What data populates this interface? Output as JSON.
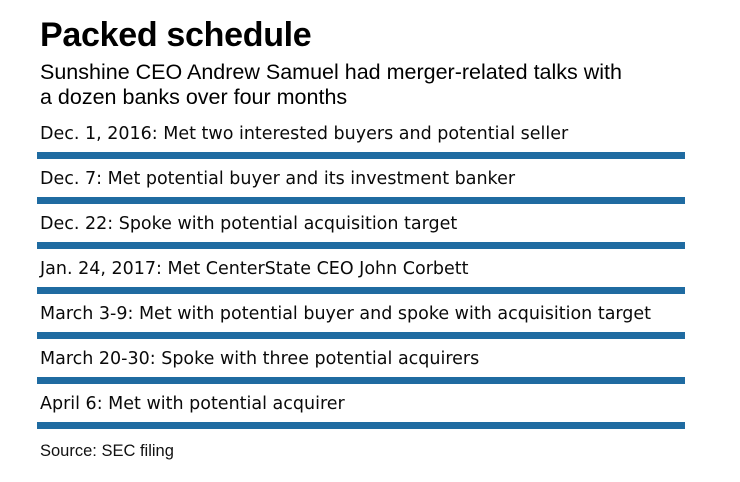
{
  "header": {
    "title": "Packed schedule",
    "subtitle": "Sunshine CEO Andrew Samuel had merger-related talks with a dozen banks over four months",
    "subtitle_lines": [
      "Sunshine CEO Andrew Samuel had merger-related talks with",
      "a dozen banks over four months"
    ]
  },
  "timeline": {
    "events": [
      "Dec. 1, 2016: Met two interested buyers and potential seller",
      "Dec. 7: Met potential buyer and its investment banker",
      "Dec. 22: Spoke with potential acquisition target",
      "Jan. 24, 2017: Met CenterState CEO John Corbett",
      "March 3-9: Met with potential buyer and spoke with acquisition target",
      "March 20-30: Spoke with three potential acquirers",
      "April 6: Met with potential acquirer"
    ]
  },
  "footer": {
    "source": "Source: SEC filing"
  },
  "colors": {
    "divider_blue": "#1f6ba1",
    "text_black": "#000000"
  },
  "chart_data": {
    "type": "table",
    "title": "Packed schedule",
    "subtitle": "Sunshine CEO Andrew Samuel had merger-related talks with a dozen banks over four months",
    "columns": [
      "date",
      "event"
    ],
    "rows": [
      [
        "Dec. 1, 2016",
        "Met two interested buyers and potential seller"
      ],
      [
        "Dec. 7",
        "Met potential buyer and its investment banker"
      ],
      [
        "Dec. 22",
        "Spoke with potential acquisition target"
      ],
      [
        "Jan. 24, 2017",
        "Met CenterState CEO John Corbett"
      ],
      [
        "March 3-9",
        "Met with potential buyer and spoke with acquisition target"
      ],
      [
        "March 20-30",
        "Spoke with three potential acquirers"
      ],
      [
        "April 6",
        "Met with potential acquirer"
      ]
    ],
    "source": "SEC filing",
    "layout": {
      "style": "timeline list separated by thick blue horizontal rules",
      "divider_color": "#1f6ba1",
      "background": "#ffffff"
    }
  }
}
